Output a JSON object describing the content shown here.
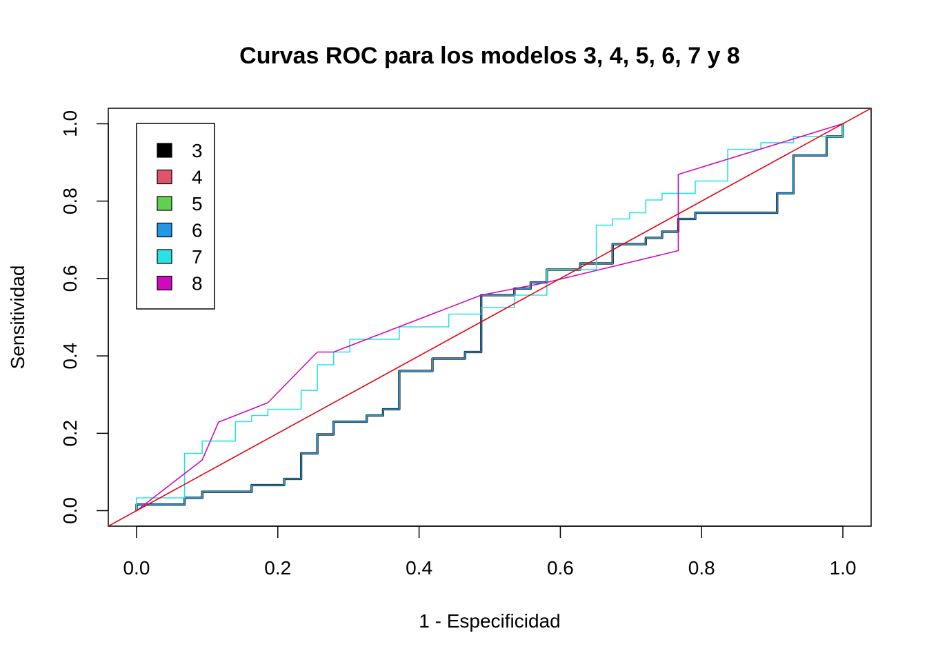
{
  "chart_data": {
    "type": "line",
    "title": "Curvas ROC para los modelos 3, 4, 5, 6, 7 y 8",
    "xlabel": "1 - Especificidad",
    "ylabel": "Sensitividad",
    "xlim": [
      -0.04,
      1.04
    ],
    "ylim": [
      -0.04,
      1.04
    ],
    "x_ticks": [
      0.0,
      0.2,
      0.4,
      0.6,
      0.8,
      1.0
    ],
    "x_tick_labels": [
      "0.0",
      "0.2",
      "0.4",
      "0.6",
      "0.8",
      "1.0"
    ],
    "y_ticks": [
      0.0,
      0.2,
      0.4,
      0.6,
      0.8,
      1.0
    ],
    "y_tick_labels": [
      "0.0",
      "0.2",
      "0.4",
      "0.6",
      "0.8",
      "1.0"
    ],
    "grid": false,
    "legend_position": "top-left",
    "reference_line": {
      "from": [
        0,
        0
      ],
      "to": [
        1,
        1
      ],
      "color": "#e8000b"
    },
    "series": [
      {
        "name": "3",
        "color": "#000000",
        "width": 3.2,
        "points": [
          [
            0,
            0
          ],
          [
            0,
            0.016
          ],
          [
            0.068,
            0.016
          ],
          [
            0.068,
            0.033
          ],
          [
            0.093,
            0.033
          ],
          [
            0.093,
            0.049
          ],
          [
            0.163,
            0.049
          ],
          [
            0.163,
            0.066
          ],
          [
            0.209,
            0.066
          ],
          [
            0.209,
            0.082
          ],
          [
            0.233,
            0.082
          ],
          [
            0.233,
            0.148
          ],
          [
            0.256,
            0.148
          ],
          [
            0.256,
            0.197
          ],
          [
            0.279,
            0.197
          ],
          [
            0.279,
            0.23
          ],
          [
            0.326,
            0.23
          ],
          [
            0.326,
            0.246
          ],
          [
            0.349,
            0.246
          ],
          [
            0.349,
            0.262
          ],
          [
            0.372,
            0.262
          ],
          [
            0.372,
            0.361
          ],
          [
            0.419,
            0.361
          ],
          [
            0.419,
            0.393
          ],
          [
            0.465,
            0.393
          ],
          [
            0.465,
            0.41
          ],
          [
            0.488,
            0.41
          ],
          [
            0.488,
            0.557
          ],
          [
            0.535,
            0.557
          ],
          [
            0.535,
            0.574
          ],
          [
            0.558,
            0.574
          ],
          [
            0.558,
            0.59
          ],
          [
            0.581,
            0.59
          ],
          [
            0.581,
            0.623
          ],
          [
            0.628,
            0.623
          ],
          [
            0.628,
            0.639
          ],
          [
            0.674,
            0.639
          ],
          [
            0.674,
            0.689
          ],
          [
            0.721,
            0.689
          ],
          [
            0.721,
            0.705
          ],
          [
            0.744,
            0.705
          ],
          [
            0.744,
            0.721
          ],
          [
            0.767,
            0.721
          ],
          [
            0.767,
            0.754
          ],
          [
            0.791,
            0.754
          ],
          [
            0.791,
            0.77
          ],
          [
            0.907,
            0.77
          ],
          [
            0.907,
            0.82
          ],
          [
            0.93,
            0.82
          ],
          [
            0.93,
            0.918
          ],
          [
            0.977,
            0.918
          ],
          [
            0.977,
            0.967
          ],
          [
            1,
            0.967
          ],
          [
            1,
            1
          ]
        ]
      },
      {
        "name": "4",
        "color": "#df536b",
        "width": 1.6,
        "points": [
          [
            0,
            0
          ],
          [
            0,
            0.016
          ],
          [
            0.068,
            0.016
          ],
          [
            0.068,
            0.033
          ],
          [
            0.093,
            0.033
          ],
          [
            0.093,
            0.049
          ],
          [
            0.163,
            0.049
          ],
          [
            0.163,
            0.066
          ],
          [
            0.209,
            0.066
          ],
          [
            0.209,
            0.082
          ],
          [
            0.233,
            0.082
          ],
          [
            0.233,
            0.148
          ],
          [
            0.256,
            0.148
          ],
          [
            0.256,
            0.197
          ],
          [
            0.279,
            0.197
          ],
          [
            0.279,
            0.23
          ],
          [
            0.326,
            0.23
          ],
          [
            0.326,
            0.246
          ],
          [
            0.349,
            0.246
          ],
          [
            0.349,
            0.262
          ],
          [
            0.372,
            0.262
          ],
          [
            0.372,
            0.361
          ],
          [
            0.419,
            0.361
          ],
          [
            0.419,
            0.393
          ],
          [
            0.465,
            0.393
          ],
          [
            0.465,
            0.41
          ],
          [
            0.488,
            0.41
          ],
          [
            0.488,
            0.557
          ],
          [
            0.535,
            0.557
          ],
          [
            0.535,
            0.574
          ],
          [
            0.558,
            0.574
          ],
          [
            0.558,
            0.59
          ],
          [
            0.581,
            0.59
          ],
          [
            0.581,
            0.623
          ],
          [
            0.628,
            0.623
          ],
          [
            0.628,
            0.639
          ],
          [
            0.674,
            0.639
          ],
          [
            0.674,
            0.689
          ],
          [
            0.721,
            0.689
          ],
          [
            0.721,
            0.705
          ],
          [
            0.744,
            0.705
          ],
          [
            0.744,
            0.721
          ],
          [
            0.767,
            0.721
          ],
          [
            0.767,
            0.754
          ],
          [
            0.791,
            0.754
          ],
          [
            0.791,
            0.77
          ],
          [
            0.907,
            0.77
          ],
          [
            0.907,
            0.82
          ],
          [
            0.93,
            0.82
          ],
          [
            0.93,
            0.918
          ],
          [
            0.977,
            0.918
          ],
          [
            0.977,
            0.967
          ],
          [
            1,
            0.967
          ],
          [
            1,
            1
          ]
        ]
      },
      {
        "name": "5",
        "color": "#61d04f",
        "width": 1.6,
        "points": [
          [
            0,
            0
          ],
          [
            0,
            0.016
          ],
          [
            0.068,
            0.016
          ],
          [
            0.068,
            0.033
          ],
          [
            0.093,
            0.033
          ],
          [
            0.093,
            0.049
          ],
          [
            0.163,
            0.049
          ],
          [
            0.163,
            0.066
          ],
          [
            0.209,
            0.066
          ],
          [
            0.209,
            0.082
          ],
          [
            0.233,
            0.082
          ],
          [
            0.233,
            0.148
          ],
          [
            0.256,
            0.148
          ],
          [
            0.256,
            0.197
          ],
          [
            0.279,
            0.197
          ],
          [
            0.279,
            0.23
          ],
          [
            0.326,
            0.23
          ],
          [
            0.326,
            0.246
          ],
          [
            0.349,
            0.246
          ],
          [
            0.349,
            0.262
          ],
          [
            0.372,
            0.262
          ],
          [
            0.372,
            0.361
          ],
          [
            0.419,
            0.361
          ],
          [
            0.419,
            0.393
          ],
          [
            0.465,
            0.393
          ],
          [
            0.465,
            0.41
          ],
          [
            0.488,
            0.41
          ],
          [
            0.488,
            0.557
          ],
          [
            0.535,
            0.557
          ],
          [
            0.535,
            0.574
          ],
          [
            0.558,
            0.574
          ],
          [
            0.558,
            0.59
          ],
          [
            0.581,
            0.59
          ],
          [
            0.581,
            0.623
          ],
          [
            0.628,
            0.623
          ],
          [
            0.628,
            0.639
          ],
          [
            0.674,
            0.639
          ],
          [
            0.674,
            0.689
          ],
          [
            0.721,
            0.689
          ],
          [
            0.721,
            0.705
          ],
          [
            0.744,
            0.705
          ],
          [
            0.744,
            0.721
          ],
          [
            0.767,
            0.721
          ],
          [
            0.767,
            0.754
          ],
          [
            0.791,
            0.754
          ],
          [
            0.791,
            0.77
          ],
          [
            0.907,
            0.77
          ],
          [
            0.907,
            0.82
          ],
          [
            0.93,
            0.82
          ],
          [
            0.93,
            0.918
          ],
          [
            0.977,
            0.918
          ],
          [
            0.977,
            0.967
          ],
          [
            1,
            0.967
          ],
          [
            1,
            1
          ]
        ]
      },
      {
        "name": "6",
        "color": "#2297e6",
        "width": 1.6,
        "points": [
          [
            0,
            0
          ],
          [
            0,
            0.016
          ],
          [
            0.068,
            0.016
          ],
          [
            0.068,
            0.033
          ],
          [
            0.093,
            0.033
          ],
          [
            0.093,
            0.049
          ],
          [
            0.163,
            0.049
          ],
          [
            0.163,
            0.066
          ],
          [
            0.209,
            0.066
          ],
          [
            0.209,
            0.082
          ],
          [
            0.233,
            0.082
          ],
          [
            0.233,
            0.148
          ],
          [
            0.256,
            0.148
          ],
          [
            0.256,
            0.197
          ],
          [
            0.279,
            0.197
          ],
          [
            0.279,
            0.23
          ],
          [
            0.326,
            0.23
          ],
          [
            0.326,
            0.246
          ],
          [
            0.349,
            0.246
          ],
          [
            0.349,
            0.262
          ],
          [
            0.372,
            0.262
          ],
          [
            0.372,
            0.361
          ],
          [
            0.419,
            0.361
          ],
          [
            0.419,
            0.393
          ],
          [
            0.465,
            0.393
          ],
          [
            0.465,
            0.41
          ],
          [
            0.488,
            0.41
          ],
          [
            0.488,
            0.557
          ],
          [
            0.535,
            0.557
          ],
          [
            0.535,
            0.574
          ],
          [
            0.558,
            0.574
          ],
          [
            0.558,
            0.59
          ],
          [
            0.581,
            0.59
          ],
          [
            0.581,
            0.623
          ],
          [
            0.628,
            0.623
          ],
          [
            0.628,
            0.639
          ],
          [
            0.674,
            0.639
          ],
          [
            0.674,
            0.689
          ],
          [
            0.721,
            0.689
          ],
          [
            0.721,
            0.705
          ],
          [
            0.744,
            0.705
          ],
          [
            0.744,
            0.721
          ],
          [
            0.767,
            0.721
          ],
          [
            0.767,
            0.754
          ],
          [
            0.791,
            0.754
          ],
          [
            0.791,
            0.77
          ],
          [
            0.907,
            0.77
          ],
          [
            0.907,
            0.82
          ],
          [
            0.93,
            0.82
          ],
          [
            0.93,
            0.918
          ],
          [
            0.977,
            0.918
          ],
          [
            0.977,
            0.967
          ],
          [
            1,
            0.967
          ],
          [
            1,
            1
          ]
        ]
      },
      {
        "name": "7",
        "color": "#28e2e5",
        "width": 1.6,
        "points": [
          [
            0,
            0
          ],
          [
            0,
            0.033
          ],
          [
            0.068,
            0.033
          ],
          [
            0.068,
            0.148
          ],
          [
            0.093,
            0.148
          ],
          [
            0.093,
            0.18
          ],
          [
            0.14,
            0.18
          ],
          [
            0.14,
            0.23
          ],
          [
            0.163,
            0.23
          ],
          [
            0.163,
            0.246
          ],
          [
            0.186,
            0.246
          ],
          [
            0.186,
            0.262
          ],
          [
            0.233,
            0.262
          ],
          [
            0.233,
            0.311
          ],
          [
            0.256,
            0.311
          ],
          [
            0.256,
            0.377
          ],
          [
            0.279,
            0.377
          ],
          [
            0.279,
            0.41
          ],
          [
            0.302,
            0.41
          ],
          [
            0.302,
            0.443
          ],
          [
            0.372,
            0.443
          ],
          [
            0.372,
            0.475
          ],
          [
            0.442,
            0.475
          ],
          [
            0.442,
            0.508
          ],
          [
            0.488,
            0.508
          ],
          [
            0.488,
            0.525
          ],
          [
            0.535,
            0.525
          ],
          [
            0.535,
            0.557
          ],
          [
            0.581,
            0.557
          ],
          [
            0.581,
            0.623
          ],
          [
            0.651,
            0.623
          ],
          [
            0.651,
            0.738
          ],
          [
            0.674,
            0.738
          ],
          [
            0.674,
            0.754
          ],
          [
            0.698,
            0.754
          ],
          [
            0.698,
            0.77
          ],
          [
            0.721,
            0.77
          ],
          [
            0.721,
            0.803
          ],
          [
            0.744,
            0.803
          ],
          [
            0.744,
            0.82
          ],
          [
            0.791,
            0.82
          ],
          [
            0.791,
            0.852
          ],
          [
            0.837,
            0.852
          ],
          [
            0.837,
            0.934
          ],
          [
            0.884,
            0.934
          ],
          [
            0.884,
            0.951
          ],
          [
            0.93,
            0.951
          ],
          [
            0.93,
            0.967
          ],
          [
            1,
            0.967
          ],
          [
            1,
            1
          ]
        ]
      },
      {
        "name": "8",
        "color": "#cd0bbc",
        "width": 1.6,
        "points": [
          [
            0,
            0
          ],
          [
            0.093,
            0.131
          ],
          [
            0.116,
            0.229
          ],
          [
            0.186,
            0.279
          ],
          [
            0.256,
            0.41
          ],
          [
            0.279,
            0.41
          ],
          [
            0.488,
            0.557
          ],
          [
            0.581,
            0.59
          ],
          [
            0.767,
            0.672
          ],
          [
            0.767,
            0.869
          ],
          [
            1,
            1
          ]
        ]
      }
    ]
  }
}
